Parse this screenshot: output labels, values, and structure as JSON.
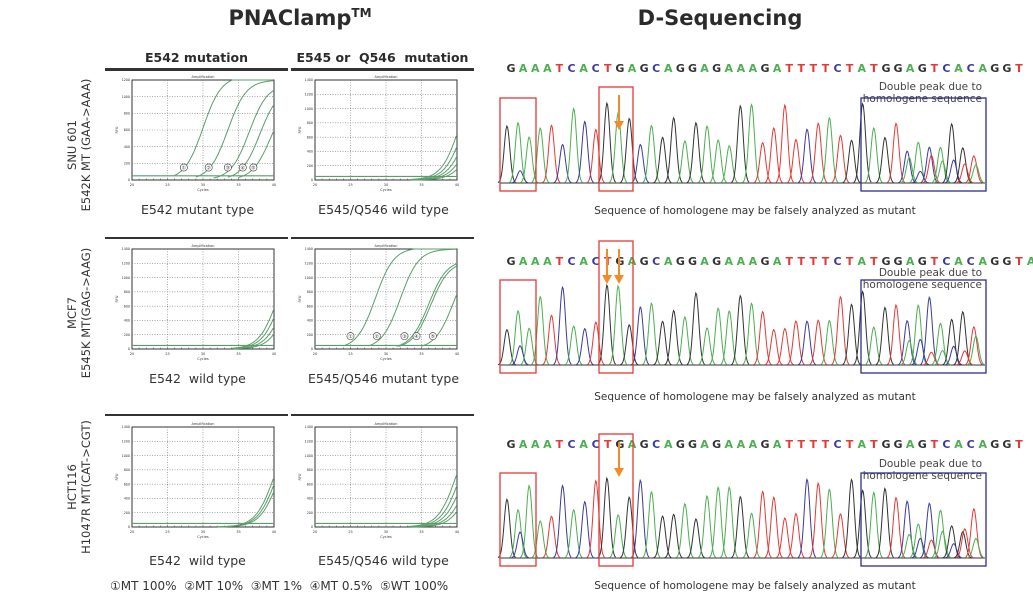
{
  "titles": {
    "left": "PNAClamp",
    "left_tm": "TM",
    "right": "D-Sequencing"
  },
  "columns": {
    "e542": "E542 mutation",
    "e545": "E545 or  Q546  mutation"
  },
  "rows": [
    {
      "cell_line": "SNU 601",
      "mutation": "E542K MT (GAA->AAA)"
    },
    {
      "cell_line": "MCF7",
      "mutation": "E545K MT(GAG->AAG)"
    },
    {
      "cell_line": "HCT116",
      "mutation": "H1047R MT(CAT->CGT)"
    }
  ],
  "legend": "①MT 100%  ②MT 10%  ③MT 1%  ④MT 0.5%  ⑤WT 100%",
  "colors": {
    "curve": "#5a9e6a",
    "A": "#4caf50",
    "C": "#3a3aa0",
    "G": "#333333",
    "T": "#e53935",
    "red_box": "#e53935",
    "blue_box": "#2e2e8f",
    "arrow": "#f28c28"
  },
  "sequencing": [
    {
      "sequence": "GAAATCACTGAGCAGGAGAAAGATTTTCTATGGAGTCACAGGT",
      "note_line1": "Double peak due to",
      "note_line2": "homologene sequence",
      "caption": "Sequence of homologene may be falsely analyzed as mutant",
      "arrows": 1
    },
    {
      "sequence": "GAAATCACTGAGCAGGAGAAAGATTTTCTATGGAGTCACAGGTA",
      "note_line1": "Double peak due to",
      "note_line2": "homologene sequence",
      "caption": "Sequence of homologene may be falsely analyzed as mutant",
      "arrows": 2
    },
    {
      "sequence": "GAAATCACTGAGCAGGAGAAAGATTTTCTATGGAGTCACAGGT",
      "note_line1": "Double peak due to",
      "note_line2": "homologene sequence",
      "caption": "Sequence of homologene may be falsely analyzed as mutant",
      "arrows": 1
    }
  ],
  "chart_data": [
    {
      "type": "line",
      "id": "r0c0",
      "title": "Amplification",
      "caption": "E542 mutant type",
      "xlabel": "Cycles",
      "ylabel": "RFU",
      "xlim": [
        20,
        40
      ],
      "ylim": [
        0,
        1200
      ],
      "xticks": [
        20,
        25,
        30,
        35,
        40
      ],
      "yticks": [
        0,
        200,
        400,
        600,
        800,
        1000,
        1200
      ],
      "grid": true,
      "baseline": 50,
      "series": [
        {
          "name": "①",
          "ct": 27.5,
          "mid": 30.0,
          "max": 1250
        },
        {
          "name": "②",
          "ct": 30.5,
          "mid": 33.5,
          "max": 1200
        },
        {
          "name": "③",
          "ct": 33.0,
          "mid": 36.5,
          "max": 1150
        },
        {
          "name": "④",
          "ct": 35.0,
          "mid": 38.0,
          "max": 1100
        },
        {
          "name": "⑤",
          "ct": 36.5,
          "mid": 39.5,
          "max": 1000
        }
      ],
      "markers": [
        {
          "label": "①",
          "x": 27.3
        },
        {
          "label": "②",
          "x": 30.8
        },
        {
          "label": "③",
          "x": 33.5
        },
        {
          "label": "④",
          "x": 35.6
        },
        {
          "label": "⑤",
          "x": 37.1
        }
      ]
    },
    {
      "type": "line",
      "id": "r0c1",
      "title": "Amplification",
      "caption": "E545/Q546 wild type",
      "xlabel": "Cycles",
      "ylabel": "RFU",
      "xlim": [
        20,
        40
      ],
      "ylim": [
        0,
        1400
      ],
      "xticks": [
        20,
        25,
        30,
        35,
        40
      ],
      "yticks": [
        0,
        200,
        400,
        600,
        800,
        1000,
        1200,
        1400
      ],
      "grid": true,
      "baseline": 50,
      "series": [
        {
          "name": "s1",
          "ct": 35.0,
          "mid": 40.5,
          "max": 1600
        },
        {
          "name": "s2",
          "ct": 35.0,
          "mid": 41.0,
          "max": 1500
        },
        {
          "name": "s3",
          "ct": 35.0,
          "mid": 41.5,
          "max": 1400
        },
        {
          "name": "s4",
          "ct": 35.2,
          "mid": 42.0,
          "max": 1300
        },
        {
          "name": "s5",
          "ct": 35.4,
          "mid": 42.5,
          "max": 1200
        }
      ],
      "markers": []
    },
    {
      "type": "line",
      "id": "r1c0",
      "title": "Amplification",
      "caption": "E542  wild type",
      "xlabel": "Cycles",
      "ylabel": "RFU",
      "xlim": [
        20,
        40
      ],
      "ylim": [
        0,
        1400
      ],
      "xticks": [
        20,
        25,
        30,
        35,
        40
      ],
      "yticks": [
        0,
        200,
        400,
        600,
        800,
        1000,
        1200,
        1400
      ],
      "grid": true,
      "baseline": 50,
      "series": [
        {
          "name": "s1",
          "ct": 35.5,
          "mid": 40.5,
          "max": 1400
        },
        {
          "name": "s2",
          "ct": 35.5,
          "mid": 41.0,
          "max": 1400
        },
        {
          "name": "s3",
          "ct": 35.7,
          "mid": 41.5,
          "max": 1300
        },
        {
          "name": "s4",
          "ct": 36.0,
          "mid": 42.0,
          "max": 1200
        }
      ],
      "markers": []
    },
    {
      "type": "line",
      "id": "r1c1",
      "title": "Amplification",
      "caption": "E545/Q546 mutant type",
      "xlabel": "Cycles",
      "ylabel": "RFU",
      "xlim": [
        20,
        40
      ],
      "ylim": [
        0,
        1400
      ],
      "xticks": [
        20,
        25,
        30,
        35,
        40
      ],
      "yticks": [
        0,
        200,
        400,
        600,
        800,
        1000,
        1200,
        1400
      ],
      "grid": true,
      "baseline": 50,
      "series": [
        {
          "name": "①",
          "ct": 25.5,
          "mid": 28.5,
          "max": 1420
        },
        {
          "name": "②",
          "ct": 29.0,
          "mid": 32.0,
          "max": 1400
        },
        {
          "name": "③",
          "ct": 33.0,
          "mid": 36.0,
          "max": 1250
        },
        {
          "name": "④",
          "ct": 33.3,
          "mid": 36.3,
          "max": 1230
        },
        {
          "name": "⑤",
          "ct": 36.5,
          "mid": 39.5,
          "max": 1300
        }
      ],
      "markers": [
        {
          "label": "①",
          "x": 25.0
        },
        {
          "label": "②",
          "x": 28.7
        },
        {
          "label": "③",
          "x": 32.6
        },
        {
          "label": "④",
          "x": 34.3
        },
        {
          "label": "⑤",
          "x": 36.6
        }
      ]
    },
    {
      "type": "line",
      "id": "r2c0",
      "title": "Amplification",
      "caption": "E542  wild type",
      "xlabel": "Cycles",
      "ylabel": "RFU",
      "xlim": [
        20,
        40
      ],
      "ylim": [
        0,
        1400
      ],
      "xticks": [
        20,
        25,
        30,
        35,
        40
      ],
      "yticks": [
        0,
        200,
        400,
        600,
        800,
        1000,
        1200,
        1400
      ],
      "grid": true,
      "baseline": 50,
      "series": [
        {
          "name": "s1",
          "ct": 33.5,
          "mid": 40.0,
          "max": 1400
        },
        {
          "name": "s2",
          "ct": 33.5,
          "mid": 40.3,
          "max": 1350
        },
        {
          "name": "s3",
          "ct": 33.7,
          "mid": 40.6,
          "max": 1300
        }
      ],
      "markers": []
    },
    {
      "type": "line",
      "id": "r2c1",
      "title": "Amplification",
      "caption": "E545/Q546 wild type",
      "xlabel": "Cycles",
      "ylabel": "RFU",
      "xlim": [
        20,
        40
      ],
      "ylim": [
        0,
        1400
      ],
      "xticks": [
        20,
        25,
        30,
        35,
        40
      ],
      "yticks": [
        0,
        200,
        400,
        600,
        800,
        1000,
        1200,
        1400
      ],
      "grid": true,
      "baseline": 50,
      "series": [
        {
          "name": "s1",
          "ct": 34.5,
          "mid": 40.0,
          "max": 1500
        },
        {
          "name": "s2",
          "ct": 34.7,
          "mid": 40.5,
          "max": 1450
        },
        {
          "name": "s3",
          "ct": 35.0,
          "mid": 41.0,
          "max": 1400
        },
        {
          "name": "s4",
          "ct": 35.2,
          "mid": 41.5,
          "max": 1300
        },
        {
          "name": "s5",
          "ct": 35.5,
          "mid": 42.0,
          "max": 1250
        }
      ],
      "markers": []
    }
  ]
}
